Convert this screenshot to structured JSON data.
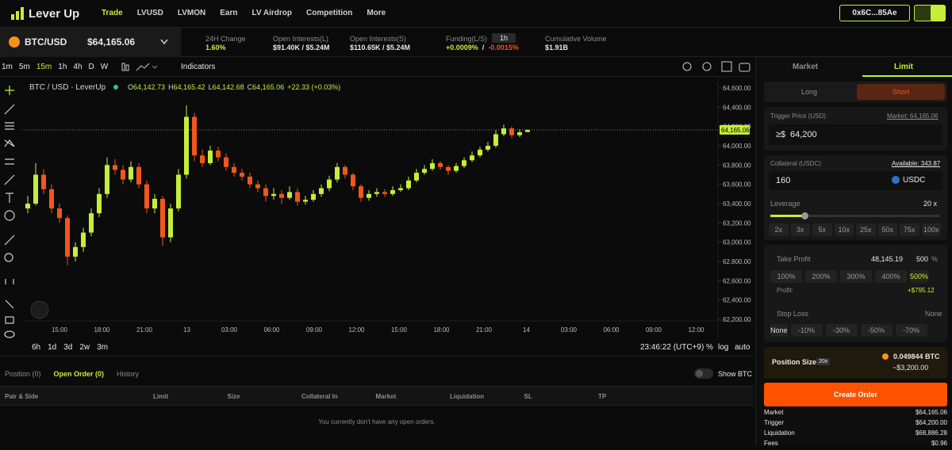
{
  "header": {
    "logo": "Lever Up",
    "nav": [
      "Trade",
      "LVUSD",
      "LVMON",
      "Earn",
      "LV Airdrop",
      "Competition",
      "More"
    ],
    "wallet": "0x6C...85Ae"
  },
  "ticker": {
    "pair": "BTC/USD",
    "price": "$64,165.06",
    "change_label": "24H Change",
    "change": "1.60%",
    "oil_label": "Open Interests(L)",
    "oil": "$91.40K / $5.24M",
    "ois_label": "Open Interests(S)",
    "ois": "$110.65K / $5.24M",
    "funding_label": "Funding(L/S)",
    "funding_interval": "1h",
    "funding_long": "+0.0009%",
    "funding_sep": "/",
    "funding_short": "-0.0015%",
    "volume_label": "Cumulative Volume",
    "volume": "$1.91B"
  },
  "toolbar": {
    "intervals": [
      "1m",
      "5m",
      "15m",
      "1h",
      "4h",
      "D",
      "W"
    ],
    "indicators": "Indicators"
  },
  "chart": {
    "type": "candlestick",
    "symbol": "BTC / USD · LeverUp",
    "ohlc": [
      {
        "key": "O",
        "value": "64,142.73"
      },
      {
        "key": "H",
        "value": "64,165.42"
      },
      {
        "key": "L",
        "value": "64,142.68"
      },
      {
        "key": "C",
        "value": "64,165.06"
      }
    ],
    "change": "+22.33 (+0.03%)",
    "up_color": "#c5ee3a",
    "down_color": "#f2561d",
    "ylim": [
      62184,
      64715
    ],
    "yticks": [
      {
        "value": 64600,
        "label": "64,600.00"
      },
      {
        "value": 64400,
        "label": "64,400.00"
      },
      {
        "value": 64200,
        "label": "64,200.00"
      },
      {
        "value": 64000,
        "label": "64,000.00"
      },
      {
        "value": 63800,
        "label": "63,800.00"
      },
      {
        "value": 63600,
        "label": "63,600.00"
      },
      {
        "value": 63400,
        "label": "63,400.00"
      },
      {
        "value": 63200,
        "label": "63,200.00"
      },
      {
        "value": 63000,
        "label": "63,000.00"
      },
      {
        "value": 62800,
        "label": "62,800.00"
      },
      {
        "value": 62600,
        "label": "62,600.00"
      },
      {
        "value": 62400,
        "label": "62,400.00"
      },
      {
        "value": 62200,
        "label": "62,200.00"
      }
    ],
    "last_price": {
      "value": 64165.06,
      "label": "64,165.06"
    },
    "time_labels": [
      "15:00",
      "18:00",
      "21:00",
      "13",
      "03:00",
      "06:00",
      "09:00",
      "12:00",
      "15:00",
      "18:00",
      "21:00",
      "14",
      "03:00",
      "06:00",
      "09:00",
      "12:00"
    ],
    "candles": [
      [
        63350,
        63480,
        63300,
        63400
      ],
      [
        63400,
        63820,
        63380,
        63700
      ],
      [
        63700,
        63760,
        63500,
        63550
      ],
      [
        63550,
        63600,
        63300,
        63350
      ],
      [
        63350,
        63400,
        63200,
        63250
      ],
      [
        63250,
        63280,
        62760,
        62850
      ],
      [
        62850,
        63000,
        62800,
        62950
      ],
      [
        62950,
        63150,
        62900,
        63100
      ],
      [
        63100,
        63350,
        63060,
        63300
      ],
      [
        63300,
        63560,
        63260,
        63500
      ],
      [
        63500,
        63880,
        63460,
        63800
      ],
      [
        63800,
        63860,
        63700,
        63750
      ],
      [
        63750,
        63800,
        63600,
        63650
      ],
      [
        63650,
        63840,
        63620,
        63780
      ],
      [
        63780,
        63820,
        63560,
        63600
      ],
      [
        63600,
        63640,
        63300,
        63350
      ],
      [
        63350,
        63500,
        63300,
        63450
      ],
      [
        63450,
        63480,
        62960,
        63050
      ],
      [
        63050,
        63400,
        63000,
        63350
      ],
      [
        63350,
        63760,
        63320,
        63700
      ],
      [
        63700,
        64420,
        63660,
        64300
      ],
      [
        64300,
        64340,
        63840,
        63900
      ],
      [
        63900,
        63960,
        63780,
        63820
      ],
      [
        63820,
        64000,
        63800,
        63950
      ],
      [
        63950,
        63990,
        63840,
        63880
      ],
      [
        63880,
        63920,
        63740,
        63780
      ],
      [
        63780,
        63820,
        63680,
        63720
      ],
      [
        63720,
        63760,
        63640,
        63680
      ],
      [
        63680,
        63720,
        63560,
        63600
      ],
      [
        63600,
        63640,
        63520,
        63560
      ],
      [
        63560,
        63600,
        63420,
        63480
      ],
      [
        63480,
        63560,
        63440,
        63500
      ],
      [
        63500,
        63540,
        63400,
        63460
      ],
      [
        63460,
        63580,
        63440,
        63520
      ],
      [
        63520,
        63560,
        63380,
        63420
      ],
      [
        63420,
        63480,
        63390,
        63440
      ],
      [
        63440,
        63540,
        63420,
        63500
      ],
      [
        63500,
        63600,
        63470,
        63560
      ],
      [
        63560,
        63690,
        63530,
        63650
      ],
      [
        63650,
        63820,
        63620,
        63780
      ],
      [
        63780,
        63800,
        63660,
        63700
      ],
      [
        63700,
        63720,
        63540,
        63580
      ],
      [
        63580,
        63600,
        63420,
        63460
      ],
      [
        63460,
        63540,
        63430,
        63500
      ],
      [
        63500,
        63560,
        63470,
        63520
      ],
      [
        63520,
        63550,
        63470,
        63500
      ],
      [
        63500,
        63580,
        63480,
        63540
      ],
      [
        63540,
        63600,
        63520,
        63560
      ],
      [
        63560,
        63680,
        63540,
        63640
      ],
      [
        63640,
        63760,
        63620,
        63720
      ],
      [
        63720,
        63800,
        63700,
        63760
      ],
      [
        63760,
        63860,
        63740,
        63820
      ],
      [
        63820,
        63840,
        63750,
        63780
      ],
      [
        63780,
        63800,
        63700,
        63740
      ],
      [
        63740,
        63820,
        63720,
        63790
      ],
      [
        63790,
        63880,
        63770,
        63850
      ],
      [
        63850,
        63940,
        63830,
        63900
      ],
      [
        63900,
        63990,
        63880,
        63960
      ],
      [
        63960,
        64040,
        63940,
        64000
      ],
      [
        64000,
        64160,
        63980,
        64120
      ],
      [
        64120,
        64220,
        64100,
        64180
      ],
      [
        64180,
        64200,
        64080,
        64110
      ],
      [
        64110,
        64170,
        64090,
        64140
      ],
      [
        64142.73,
        64165.42,
        64142.68,
        64165.06
      ]
    ]
  },
  "range_bar": {
    "ranges": [
      "6h",
      "1d",
      "3d",
      "2w",
      "3m"
    ],
    "time": "23:46:22 (UTC+9)",
    "pct": "%",
    "log": "log",
    "auto": "auto"
  },
  "positions": {
    "tabs": [
      "Position (0)",
      "Open Order (0)",
      "History"
    ],
    "show_btc": "Show BTC",
    "columns": [
      "Pair & Side",
      "Limit",
      "Size",
      "Collateral In",
      "Market",
      "Liquidation",
      "SL",
      "TP"
    ],
    "empty": "You currently don't have any open orders."
  },
  "order": {
    "tabs": [
      "Market",
      "Limit"
    ],
    "sides": [
      "Long",
      "Short"
    ],
    "trigger_label": "Trigger Price (USD)",
    "trigger_market": "Market: 64,165.06",
    "trigger_prefix": "≥$",
    "trigger_value": "64,200",
    "collateral_label": "Collateral (USDC)",
    "available": "Available: 343.87",
    "collateral_value": "160",
    "token": "USDC",
    "leverage_label": "Leverage",
    "leverage_value": "20 x",
    "leverage_presets": [
      "2x",
      "3x",
      "5x",
      "10x",
      "25x",
      "50x",
      "75x",
      "100x"
    ],
    "tp_label": "Take Profit",
    "tp_value": "48,145.19",
    "tp_pct": "500",
    "tp_unit": "%",
    "tp_presets": [
      "100%",
      "200%",
      "300%",
      "400%",
      "500%"
    ],
    "profit_label": "Profit:",
    "profit": "+$795.12",
    "sl_label": "Stop Loss",
    "sl_value": "None",
    "sl_presets": [
      "None",
      "-10%",
      "-30%",
      "-50%",
      "-70%"
    ],
    "size_label": "Position Size",
    "size_leverage": "20x",
    "size_btc": "0.049844 BTC",
    "size_usd": "~$3,200.00",
    "button": "Create Order",
    "summary": [
      [
        "Market",
        "$64,165.06"
      ],
      [
        "Trigger",
        "$64,200.00"
      ],
      [
        "Liquidation",
        "$68,886.28"
      ],
      [
        "Fees",
        "$0.96"
      ]
    ]
  }
}
